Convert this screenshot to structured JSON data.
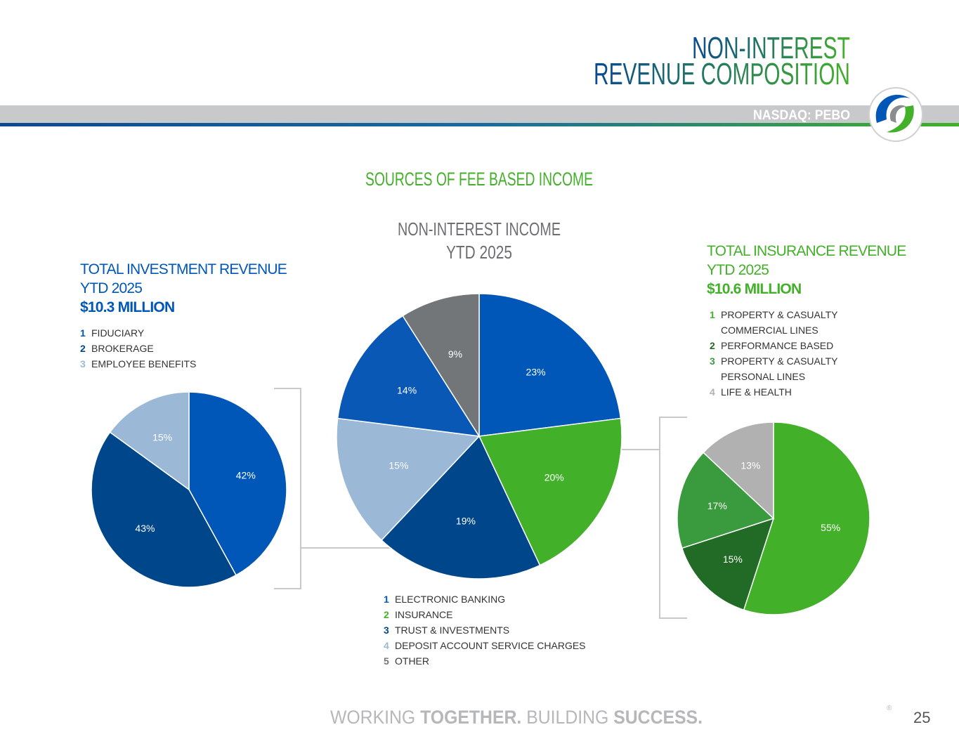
{
  "header": {
    "title_lines": [
      "NON-INTEREST",
      "REVENUE COMPOSITION"
    ],
    "ticker": "NASDAQ: PEBO"
  },
  "section_title": "SOURCES OF FEE BASED INCOME",
  "chart_data": [
    {
      "type": "pie",
      "title_lines": [
        "TOTAL INVESTMENT REVENUE",
        "YTD 2025"
      ],
      "total": "$10.3 MILLION",
      "categories": [
        "FIDUCIARY",
        "BROKERAGE",
        "EMPLOYEE BENEFITS"
      ],
      "legend_numbers": [
        "1",
        "2",
        "3"
      ],
      "values": [
        42,
        43,
        15
      ],
      "value_labels": [
        "42%",
        "43%",
        "15%"
      ],
      "colors": [
        "#0057b8",
        "#00468b",
        "#9bb9d6"
      ]
    },
    {
      "type": "pie",
      "title_lines": [
        "NON-INTEREST INCOME",
        "YTD 2025"
      ],
      "categories": [
        "ELECTRONIC BANKING",
        "INSURANCE",
        "TRUST & INVESTMENTS",
        "DEPOSIT ACCOUNT SERVICE CHARGES",
        null,
        "OTHER"
      ],
      "legend_numbers": [
        "1",
        "2",
        "3",
        "4",
        null,
        "5"
      ],
      "values": [
        23,
        20,
        19,
        15,
        14,
        9
      ],
      "value_labels": [
        "23%",
        "20%",
        "19%",
        "15%",
        "14%",
        "9%"
      ],
      "colors": [
        "#0057b8",
        "#43b02a",
        "#00468b",
        "#9bb9d6",
        "#0a58b6",
        "#737679"
      ]
    },
    {
      "type": "pie",
      "title_lines": [
        "TOTAL INSURANCE REVENUE",
        "YTD 2025"
      ],
      "total": "$10.6 MILLION",
      "categories": [
        "PROPERTY & CASUALTY COMMERCIAL LINES",
        "PERFORMANCE BASED",
        "PROPERTY & CASUALTY PERSONAL LINES",
        "LIFE & HEALTH"
      ],
      "legend_numbers": [
        "1",
        "2",
        "3",
        "4"
      ],
      "values": [
        55,
        15,
        17,
        13
      ],
      "value_labels": [
        "55%",
        "15%",
        "17%",
        "13%"
      ],
      "colors": [
        "#43b02a",
        "#226b26",
        "#3a9a3e",
        "#b1b1b1"
      ]
    }
  ],
  "footer": {
    "slogan": [
      "WORKING",
      "TOGETHER.",
      "BUILDING",
      "SUCCESS."
    ],
    "registered": "®",
    "page_number": "25"
  }
}
